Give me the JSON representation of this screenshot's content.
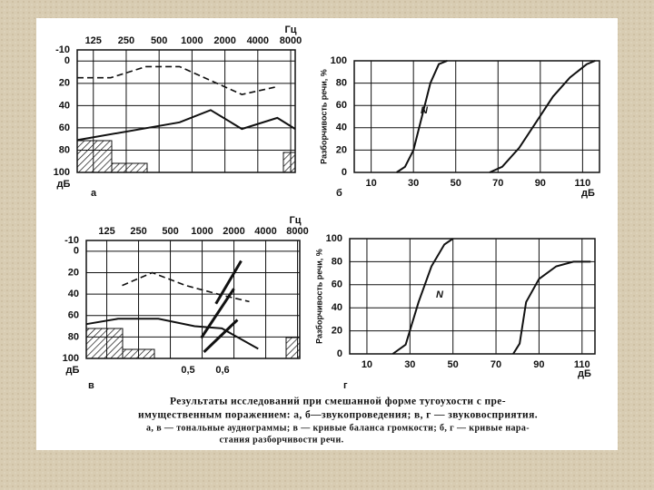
{
  "chart_data": [
    {
      "type": "line",
      "panel": "а",
      "x_unit": "Гц",
      "y_unit": "дБ",
      "log_x": true,
      "x_ticks_top": true,
      "y_inverted": true,
      "grid": true,
      "xlim": [
        89,
        8800
      ],
      "xticks": [
        125,
        250,
        500,
        1000,
        2000,
        4000,
        8000
      ],
      "ylim": [
        -10,
        100
      ],
      "yticks": [
        -10,
        0,
        20,
        40,
        60,
        80,
        100
      ],
      "series": [
        {
          "style": "dashed",
          "color": "#111",
          "x": [
            89,
            180,
            380,
            770,
            2860,
            6030
          ],
          "values": [
            15,
            15,
            5,
            5,
            30,
            23
          ]
        },
        {
          "style": "solid",
          "color": "#111",
          "x": [
            89,
            770,
            1480,
            2860,
            6030,
            8800
          ],
          "values": [
            71,
            55,
            44,
            61,
            51,
            61
          ]
        }
      ]
    },
    {
      "type": "line",
      "panel": "б",
      "y_label": "Разборчивость речи, %",
      "x_unit": "дБ",
      "grid": true,
      "xlim": [
        2,
        118
      ],
      "xticks": [
        10,
        30,
        50,
        70,
        90,
        110
      ],
      "ylim": [
        0,
        100
      ],
      "yticks": [
        0,
        20,
        40,
        60,
        80,
        100
      ],
      "annotation": "N",
      "series": [
        {
          "style": "solid",
          "color": "#111",
          "x": [
            22,
            26,
            30,
            34,
            38,
            42,
            46
          ],
          "values": [
            0,
            5,
            20,
            50,
            80,
            97,
            100
          ]
        },
        {
          "style": "solid",
          "color": "#111",
          "x": [
            66,
            72,
            80,
            88,
            96,
            104,
            112,
            116
          ],
          "values": [
            0,
            5,
            22,
            45,
            68,
            85,
            97,
            100
          ]
        }
      ]
    },
    {
      "type": "line",
      "panel": "в",
      "x_unit": "Гц",
      "y_unit": "дБ",
      "log_x": true,
      "x_ticks_top": true,
      "y_inverted": true,
      "grid": true,
      "xlim": [
        80,
        8400
      ],
      "xticks": [
        125,
        250,
        500,
        1000,
        2000,
        4000,
        8000
      ],
      "ylim": [
        -10,
        100
      ],
      "yticks": [
        -10,
        0,
        20,
        40,
        60,
        80,
        100
      ],
      "annotations": [
        "0,5",
        "0,6"
      ],
      "series": [
        {
          "style": "dashed",
          "color": "#111",
          "x": [
            175,
            337,
            700,
            1540,
            2800
          ],
          "values": [
            32,
            20,
            32,
            41,
            47
          ]
        },
        {
          "style": "solid",
          "color": "#111",
          "x": [
            80,
            160,
            385,
            850,
            1540,
            3400
          ],
          "values": [
            68,
            63,
            63,
            70,
            72,
            91
          ]
        },
        {
          "style": "thick",
          "color": "#111",
          "x": [
            1350,
            2340
          ],
          "values": [
            49,
            9
          ]
        },
        {
          "style": "thick",
          "color": "#111",
          "x": [
            980,
            2000
          ],
          "values": [
            81,
            35
          ]
        },
        {
          "style": "thick",
          "color": "#111",
          "x": [
            1040,
            2160
          ],
          "values": [
            94,
            64
          ]
        }
      ]
    },
    {
      "type": "line",
      "panel": "г",
      "y_label": "Разборчивость речи, %",
      "x_unit": "дБ",
      "grid": true,
      "xlim": [
        2,
        116
      ],
      "xticks": [
        10,
        30,
        50,
        70,
        90,
        110
      ],
      "ylim": [
        0,
        100
      ],
      "yticks": [
        0,
        20,
        40,
        60,
        80,
        100
      ],
      "annotation": "N",
      "series": [
        {
          "style": "solid",
          "color": "#111",
          "x": [
            22,
            28,
            34,
            40,
            46,
            50
          ],
          "values": [
            0,
            8,
            45,
            76,
            95,
            100
          ]
        },
        {
          "style": "solid",
          "color": "#111",
          "x": [
            78,
            81,
            84,
            90,
            98,
            106,
            114
          ],
          "values": [
            0,
            9,
            45,
            65,
            76,
            80,
            80
          ]
        }
      ]
    }
  ],
  "caption": [
    "Результаты исследований при смешанной форме тугоухости с пре-",
    "имущественным поражением: а, б—звукопроведения; в, г — звуковосприятия.",
    "а, в — тональные аудиограммы; в — кривые баланса громкости; б, г — кривые нара-",
    "стания разборчивости речи."
  ]
}
